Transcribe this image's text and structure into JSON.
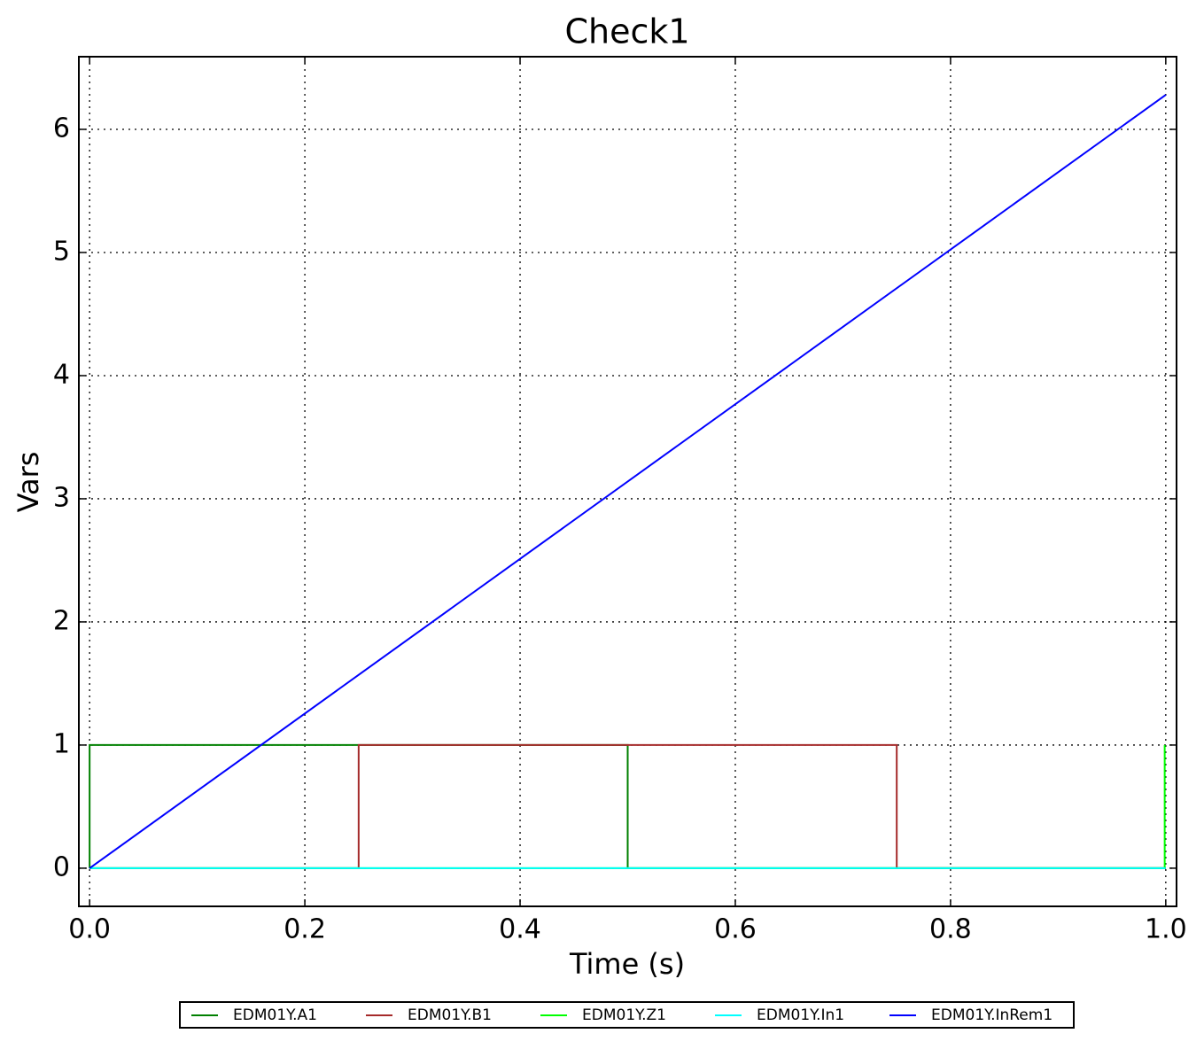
{
  "chart_data": {
    "type": "line",
    "title": "Check1",
    "x_label": "Time (s)",
    "y_label": "Vars",
    "xlim": [
      -0.01,
      1.01
    ],
    "ylim": [
      -0.31,
      6.59
    ],
    "xticks": [
      {
        "value": 0,
        "label": "0.0"
      },
      0.2,
      0.4,
      0.6,
      0.8,
      {
        "value": 1,
        "label": "1.0"
      }
    ],
    "yticks": [
      0,
      1,
      2,
      3,
      4,
      5,
      6
    ],
    "grid": true,
    "legend": "bottom",
    "series": [
      {
        "name": "EDM01Y.A1",
        "color": "#008000",
        "x": [
          0,
          0,
          0.5,
          0.5,
          1.0
        ],
        "values": [
          0,
          1,
          1,
          0,
          0
        ]
      },
      {
        "name": "EDM01Y.B1",
        "color": "#a52a2a",
        "x": [
          0,
          0.25,
          0.25,
          0.75,
          0.75,
          1.0
        ],
        "values": [
          0,
          0,
          1,
          1,
          0,
          0
        ]
      },
      {
        "name": "EDM01Y.Z1",
        "color": "#00ff00",
        "x": [
          0,
          0.999,
          0.999
        ],
        "values": [
          0,
          0,
          1
        ]
      },
      {
        "name": "EDM01Y.In1",
        "color": "#00ffff",
        "x": [
          0,
          1.0
        ],
        "values": [
          0,
          0
        ]
      },
      {
        "name": "EDM01Y.InRem1",
        "color": "#0000ff",
        "x": [
          0,
          1.0
        ],
        "values": [
          0,
          6.28
        ]
      }
    ]
  }
}
